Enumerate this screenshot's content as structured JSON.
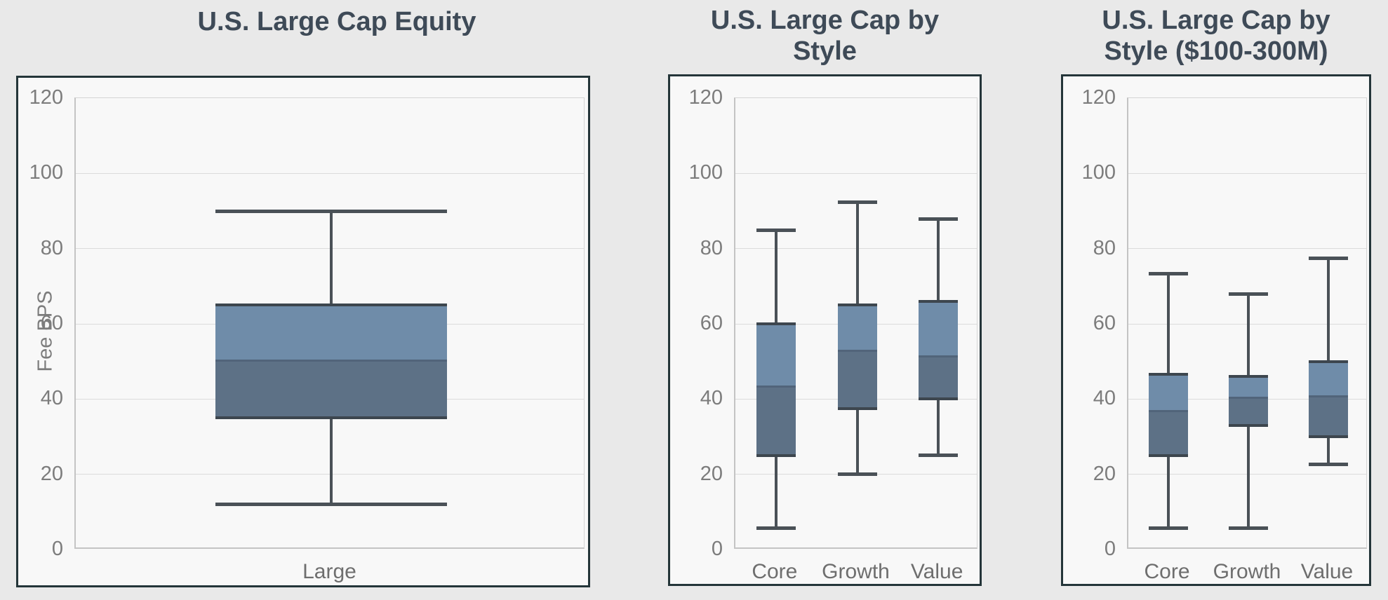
{
  "page": {
    "background": "#e9e9e9"
  },
  "colors": {
    "box_upper_fill": "#6f8ca9",
    "box_lower_fill": "#5d7186",
    "box_edge": "#3d464e",
    "whisker": "#4a5157",
    "median_line": "#51647a",
    "panel_border": "#243539",
    "panel_background": "#f8f8f8",
    "page_background": "#e9e9e9",
    "gridline": "#dcdcdc",
    "axis_line": "#c4c4c4",
    "tick_text": "#7c7c7c",
    "category_text": "#6e6e6e",
    "title_text": "#3e4a57"
  },
  "chart_data": [
    {
      "type": "boxplot",
      "title": "U.S. Large Cap Equity",
      "ylabel": "Fee BPS",
      "xlabel": "",
      "ylim": [
        0,
        120
      ],
      "ytick_step": 20,
      "yticks": [
        0,
        20,
        40,
        60,
        80,
        100,
        120
      ],
      "grid": true,
      "legend": "none",
      "categories": [
        "Large"
      ],
      "series": [
        {
          "category": "Large",
          "min": 12,
          "q1": 35,
          "median": 50,
          "q3": 65,
          "max": 90
        }
      ]
    },
    {
      "type": "boxplot",
      "title": "U.S. Large Cap by Style",
      "ylabel": "",
      "xlabel": "",
      "ylim": [
        0,
        120
      ],
      "ytick_step": 20,
      "yticks": [
        0,
        20,
        40,
        60,
        80,
        100,
        120
      ],
      "grid": true,
      "legend": "none",
      "categories": [
        "Core",
        "Growth",
        "Value"
      ],
      "series": [
        {
          "category": "Core",
          "min": 5.5,
          "q1": 25,
          "median": 43,
          "q3": 60,
          "max": 85
        },
        {
          "category": "Growth",
          "min": 20,
          "q1": 37.5,
          "median": 52.5,
          "q3": 65,
          "max": 92.5
        },
        {
          "category": "Value",
          "min": 25,
          "q1": 40,
          "median": 51,
          "q3": 66,
          "max": 88
        }
      ]
    },
    {
      "type": "boxplot",
      "title": "U.S. Large Cap by Style ($100-300M)",
      "ylabel": "",
      "xlabel": "",
      "ylim": [
        0,
        120
      ],
      "ytick_step": 20,
      "yticks": [
        0,
        20,
        40,
        60,
        80,
        100,
        120
      ],
      "grid": true,
      "legend": "none",
      "categories": [
        "Core",
        "Growth",
        "Value"
      ],
      "series": [
        {
          "category": "Core",
          "min": 5.5,
          "q1": 25,
          "median": 36.5,
          "q3": 46.5,
          "max": 73.5
        },
        {
          "category": "Growth",
          "min": 5.5,
          "q1": 33,
          "median": 40,
          "q3": 46,
          "max": 68
        },
        {
          "category": "Value",
          "min": 22.5,
          "q1": 30,
          "median": 40.5,
          "q3": 50,
          "max": 77.5
        }
      ]
    }
  ]
}
